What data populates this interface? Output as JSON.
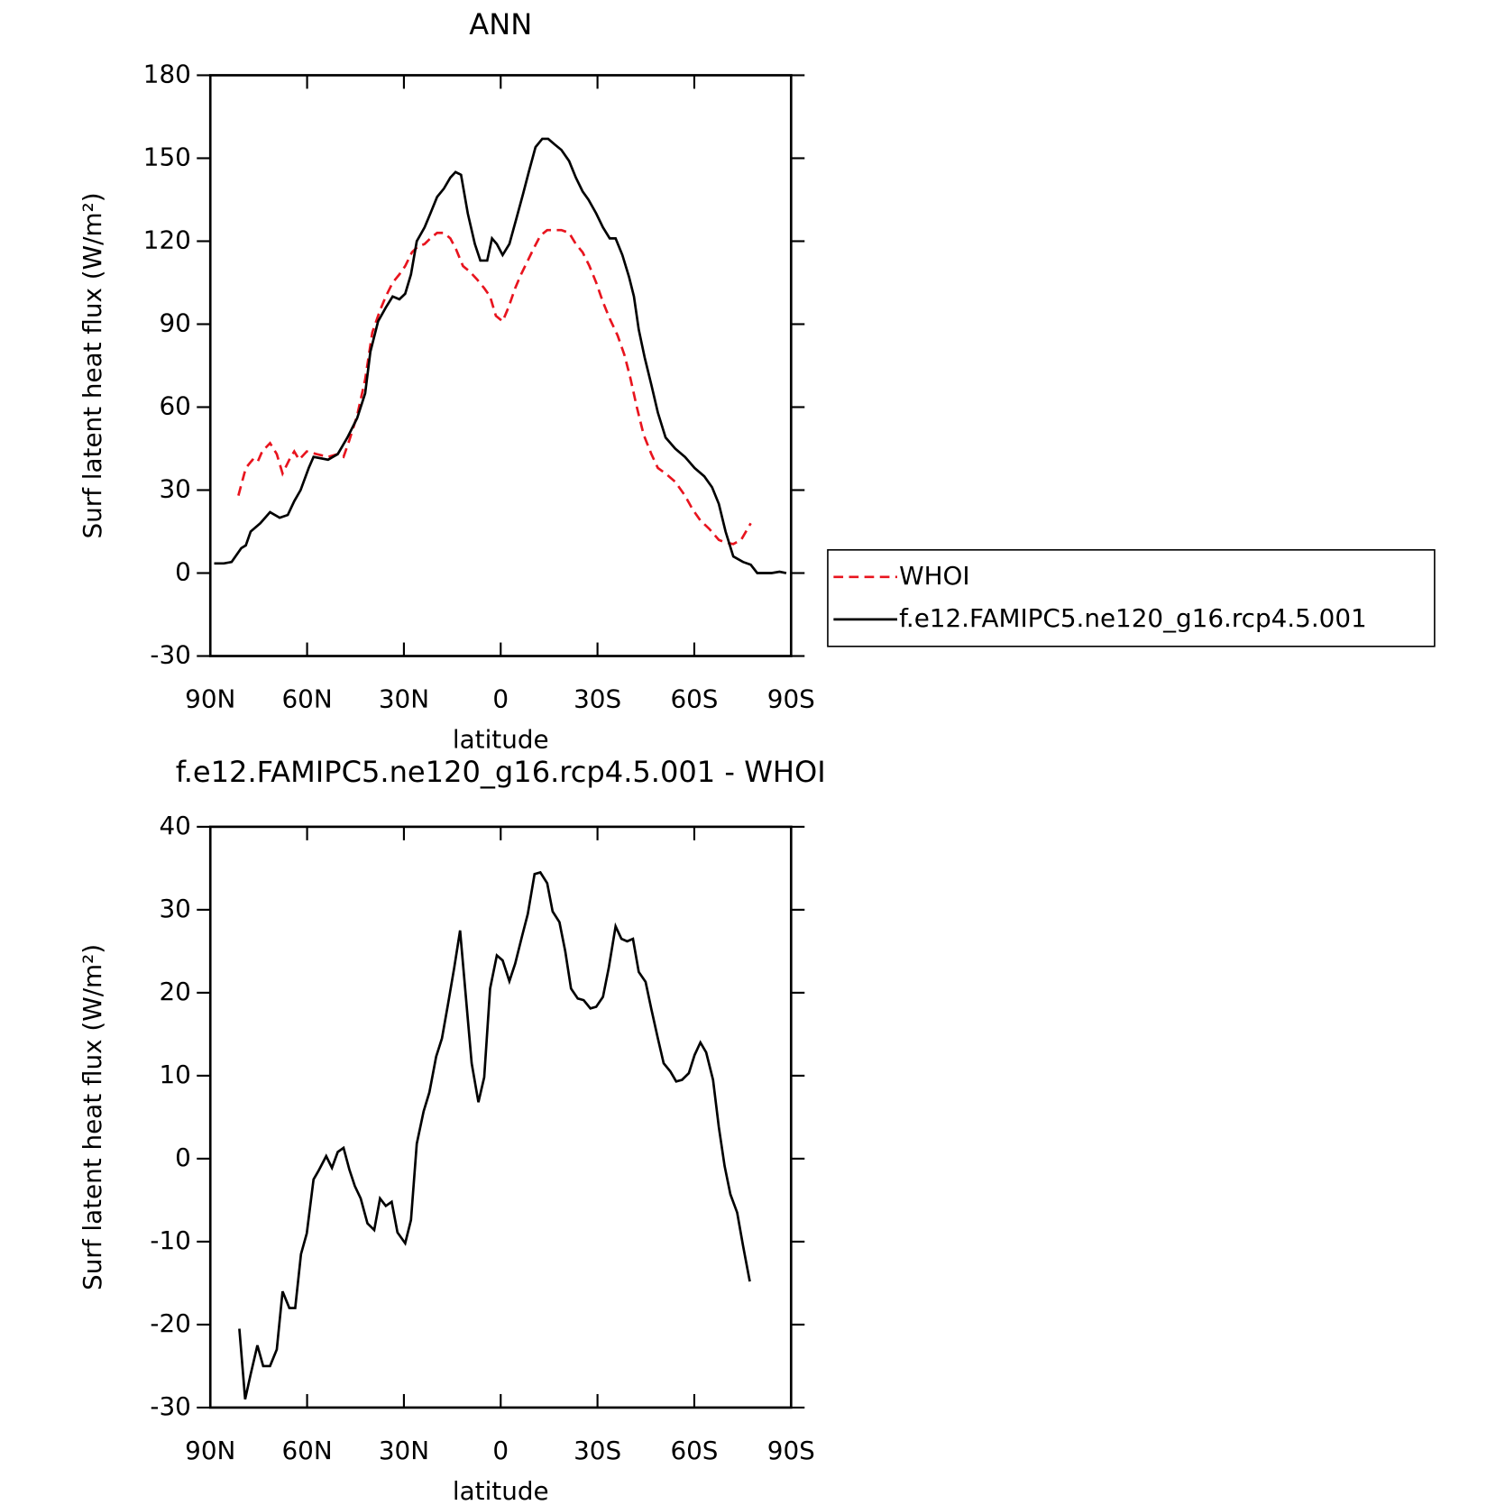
{
  "chart_data": [
    {
      "type": "line",
      "title": "ANN",
      "xlabel": "latitude",
      "ylabel": "Surf latent heat flux (W/m²)",
      "xlim": [
        90,
        -90
      ],
      "ylim": [
        -30,
        180
      ],
      "xticks": [
        {
          "value": 90,
          "label": "90N"
        },
        {
          "value": 60,
          "label": "60N"
        },
        {
          "value": 30,
          "label": "30N"
        },
        0,
        {
          "value": -30,
          "label": "30S"
        },
        {
          "value": -60,
          "label": "60S"
        },
        {
          "value": -90,
          "label": "90S"
        }
      ],
      "yticks": [
        -30,
        0,
        30,
        60,
        90,
        120,
        150,
        180
      ],
      "series": [
        {
          "name": "WHOI",
          "color": "#e8141e",
          "dash": true,
          "x": [
            81.3,
            79,
            76.9,
            75.4,
            73.9,
            71.5,
            69.4,
            67.6,
            65.5,
            64,
            62.5,
            60.1,
            57.1,
            53.5,
            50.5,
            48.7,
            46.9,
            44.5,
            42,
            39.8,
            37.4,
            35.6,
            33.5,
            31.4,
            29.6,
            27.5,
            25.7,
            23.6,
            21.8,
            19.7,
            17.6,
            15.6,
            13.8,
            11.7,
            9.6,
            7.2,
            5.1,
            3.3,
            1.5,
            -0.6,
            -2.4,
            -4.5,
            -6.3,
            -8.4,
            -10.5,
            -12.3,
            -14.4,
            -16.4,
            -18.8,
            -21.2,
            -23.3,
            -25.4,
            -27.5,
            -29.6,
            -31.7,
            -33.8,
            -36.2,
            -38.3,
            -40.1,
            -42.2,
            -44.3,
            -46.7,
            -48.7,
            -51.1,
            -54.1,
            -57.1,
            -59.5,
            -61.9,
            -64.6,
            -67.6,
            -69.7,
            -72.1,
            -74.5,
            -77.5
          ],
          "values": [
            28,
            38,
            41,
            40,
            44,
            47,
            43,
            36,
            41,
            44,
            41,
            44,
            43,
            42,
            43,
            42,
            48,
            57,
            70,
            87,
            95,
            100,
            105,
            108,
            111,
            116,
            118,
            119,
            121,
            123,
            123,
            121,
            117,
            111,
            109,
            106,
            103,
            100,
            93,
            91,
            96,
            103,
            108,
            113,
            118,
            122,
            124,
            124,
            124,
            123,
            119,
            116,
            111,
            105,
            98,
            92,
            86,
            79,
            71,
            60,
            50,
            43,
            38,
            36,
            33,
            28,
            23,
            19,
            16,
            12,
            11,
            10.5,
            12,
            18
          ]
        },
        {
          "name": "f.e12.FAMIPC5.ne120_g16.rcp4.5.001",
          "color": "#000000",
          "dash": false,
          "x": [
            88.8,
            85.8,
            83.4,
            80.4,
            79,
            77.5,
            74.5,
            71.5,
            68.5,
            66,
            64,
            62,
            59.5,
            58,
            53.5,
            50.5,
            47.5,
            44.5,
            42,
            40.4,
            38,
            35.6,
            33.5,
            31.4,
            29.6,
            27.8,
            26,
            23.6,
            21.8,
            19.7,
            17.6,
            15.6,
            14,
            12.3,
            10.2,
            8,
            6.3,
            4.2,
            2.7,
            1.2,
            -0.6,
            -2.7,
            -4.8,
            -6.9,
            -8.7,
            -10.8,
            -12.9,
            -14.7,
            -16.7,
            -18.8,
            -21.2,
            -23.3,
            -25.4,
            -27.2,
            -29.6,
            -31.7,
            -33.8,
            -35.6,
            -37.7,
            -39.8,
            -41.3,
            -42.8,
            -44.6,
            -46.7,
            -48.7,
            -51.1,
            -54.1,
            -57.1,
            -60.1,
            -63.1,
            -65.5,
            -67.6,
            -69.7,
            -72.1,
            -75.1,
            -77.5,
            -79.5,
            -84,
            -86.4,
            -88.5
          ],
          "values": [
            3.5,
            3.5,
            4,
            9,
            10,
            15,
            18,
            22,
            20,
            21,
            26,
            30,
            38,
            42,
            41,
            43,
            49,
            56,
            65,
            80,
            91,
            96,
            100,
            99,
            101,
            108,
            120,
            125,
            130,
            136,
            139,
            143,
            145,
            144,
            130,
            119,
            113,
            113,
            121,
            119,
            115,
            119,
            128,
            137,
            145,
            154,
            157,
            157,
            155,
            153,
            149,
            143,
            138,
            135,
            130,
            125,
            121,
            121,
            115,
            107,
            100,
            88,
            78,
            68,
            58,
            49,
            45,
            42,
            38,
            35,
            31,
            25,
            15,
            6,
            4,
            3,
            0,
            0,
            0.5,
            0
          ]
        }
      ]
    },
    {
      "type": "line",
      "title": "f.e12.FAMIPC5.ne120_g16.rcp4.5.001 - WHOI",
      "xlabel": "latitude",
      "ylabel": "Surf latent heat flux (W/m²)",
      "xlim": [
        90,
        -90
      ],
      "ylim": [
        -30,
        40
      ],
      "xticks": [
        {
          "value": 90,
          "label": "90N"
        },
        {
          "value": 60,
          "label": "60N"
        },
        {
          "value": 30,
          "label": "30N"
        },
        0,
        {
          "value": -30,
          "label": "30S"
        },
        {
          "value": -60,
          "label": "60S"
        },
        {
          "value": -90,
          "label": "90S"
        }
      ],
      "yticks": [
        -30,
        -20,
        -10,
        0,
        10,
        20,
        30,
        40
      ],
      "color": "#000000",
      "x": [
        81,
        79.2,
        77.5,
        75.4,
        73.6,
        71.5,
        69.4,
        67.6,
        65.5,
        63.7,
        61.9,
        60.1,
        58,
        56.5,
        54.1,
        52.3,
        50.5,
        48.7,
        46.9,
        45.2,
        43.4,
        41.3,
        39.2,
        37.4,
        35.6,
        33.8,
        32,
        29.6,
        27.8,
        26,
        23.9,
        22.1,
        20,
        18.2,
        16.4,
        14.4,
        12.6,
        10.8,
        9,
        6.9,
        5.1,
        3.3,
        1.2,
        -0.6,
        -2.7,
        -4.5,
        -6.6,
        -8.4,
        -10.5,
        -12.3,
        -14.4,
        -16.1,
        -18.2,
        -20,
        -21.8,
        -23.9,
        -25.7,
        -27.8,
        -29.6,
        -31.7,
        -33.5,
        -35.6,
        -37.4,
        -39.2,
        -41,
        -42.8,
        -44.9,
        -46.7,
        -48.7,
        -50.5,
        -52.6,
        -54.4,
        -56.2,
        -58.3,
        -60.1,
        -61.9,
        -63.7,
        -65.8,
        -67.6,
        -69.4,
        -71.2,
        -73.3,
        -75.1,
        -77.2
      ],
      "values": [
        -20.5,
        -29,
        -26,
        -22.5,
        -25,
        -25,
        -23,
        -16,
        -18,
        -18,
        -11.5,
        -9,
        -2.5,
        -1.5,
        0.3,
        -1.1,
        0.8,
        1.3,
        -1.3,
        -3.3,
        -4.8,
        -7.8,
        -8.6,
        -4.8,
        -5.7,
        -5.2,
        -8.9,
        -10.2,
        -7.4,
        1.8,
        5.7,
        8,
        12.3,
        14.5,
        18.5,
        23,
        27.5,
        19.5,
        11.5,
        6.8,
        9.8,
        20.5,
        24.5,
        23.9,
        21.4,
        23.5,
        26.8,
        29.5,
        34.3,
        34.5,
        33.2,
        29.8,
        28.5,
        25,
        20.5,
        19.3,
        19.1,
        18.1,
        18.3,
        19.5,
        23,
        28,
        26.5,
        26.2,
        26.5,
        22.5,
        21.3,
        18,
        14.5,
        11.5,
        10.5,
        9.3,
        9.5,
        10.3,
        12.5,
        14,
        12.8,
        9.5,
        3.8,
        -0.9,
        -4.3,
        -6.5,
        -10.5,
        -14.8
      ]
    }
  ]
}
